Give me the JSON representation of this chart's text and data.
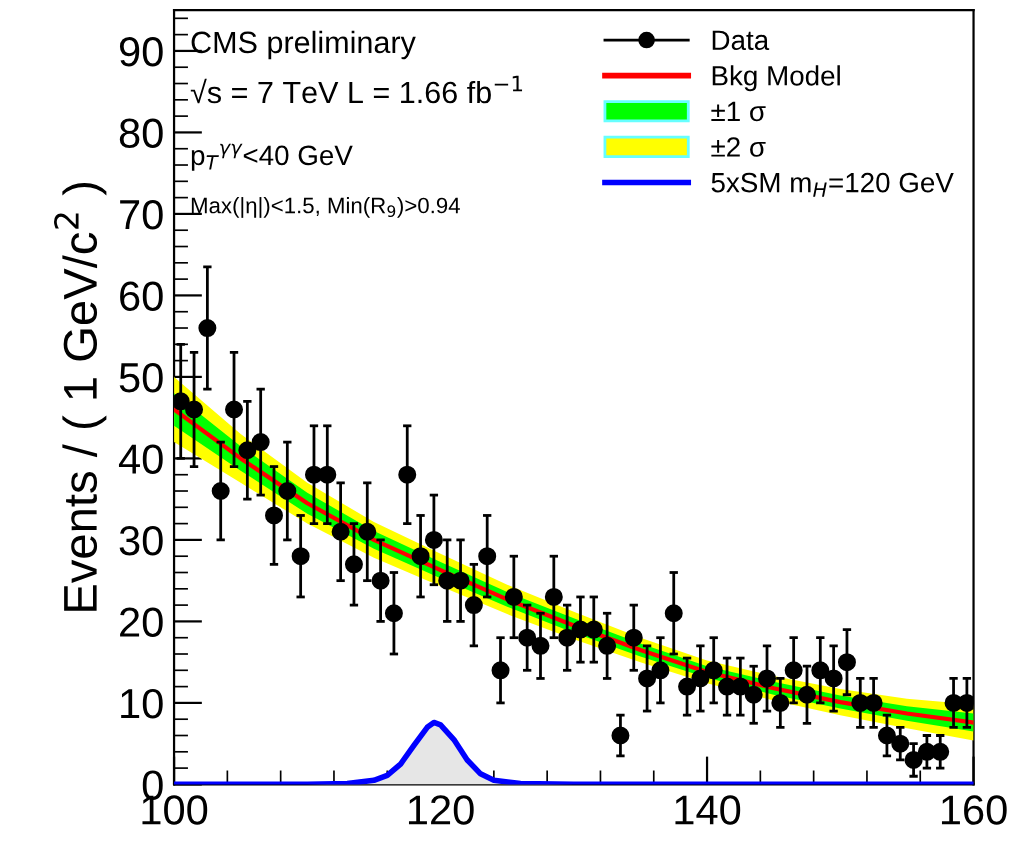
{
  "chart_data": {
    "type": "scatter",
    "ylabel": "Events / ( 1 GeV/c$^{2}$ )",
    "xlim": [
      100,
      160
    ],
    "xticks": [
      100,
      120,
      140,
      160
    ],
    "ylim": [
      0,
      95
    ],
    "yticks": [
      0,
      10,
      20,
      30,
      40,
      50,
      60,
      70,
      80,
      90
    ],
    "grid": false,
    "legend": "top right",
    "annotations": [
      "CMS preliminary",
      "√s = 7 TeV L = 1.66 fb$^{−1}$",
      "p$_{T}$$^{γγ}$<40 GeV",
      "Max(|η|)<1.5, Min(R$_{9}$)>0.94"
    ],
    "series": [
      {
        "name": "Data",
        "color": "#000000",
        "marker": "circle",
        "x": [
          100.5,
          101.5,
          102.5,
          103.5,
          104.5,
          105.5,
          106.5,
          107.5,
          108.5,
          109.5,
          110.5,
          111.5,
          112.5,
          113.5,
          114.5,
          115.5,
          116.5,
          117.5,
          118.5,
          119.5,
          120.5,
          121.5,
          122.5,
          123.5,
          124.5,
          125.5,
          126.5,
          127.5,
          128.5,
          129.5,
          130.5,
          131.5,
          132.5,
          133.5,
          134.5,
          135.5,
          136.5,
          137.5,
          138.5,
          139.5,
          140.5,
          141.5,
          142.5,
          143.5,
          144.5,
          145.5,
          146.5,
          147.5,
          148.5,
          149.5,
          150.5,
          151.5,
          152.5,
          153.5,
          154.5,
          155.5,
          156.5,
          157.5,
          158.5,
          159.5
        ],
        "values": [
          47,
          46,
          56,
          36,
          46,
          41,
          42,
          33,
          36,
          28,
          38,
          38,
          31,
          27,
          31,
          25,
          21,
          38,
          28,
          30,
          25,
          25,
          22,
          28,
          14,
          23,
          18,
          17,
          23,
          18,
          19,
          19,
          17,
          6,
          18,
          13,
          14,
          21,
          12,
          13,
          14,
          12,
          12,
          11,
          13,
          10,
          14,
          11,
          14,
          13,
          15,
          10,
          10,
          6,
          5,
          3,
          4,
          4,
          10,
          10
        ],
        "errors": [
          7,
          7,
          7.5,
          6,
          7,
          6,
          6.5,
          6,
          6,
          5,
          6,
          6,
          6,
          5,
          6,
          5,
          5,
          6,
          5,
          5.5,
          5,
          5,
          5,
          5,
          4,
          5,
          4,
          4,
          5,
          4,
          4,
          4,
          4,
          2.5,
          4,
          4,
          4,
          5,
          3.5,
          4,
          4,
          3.5,
          3.5,
          3.5,
          4,
          3,
          4,
          3.5,
          4,
          4,
          4,
          3,
          3,
          2.5,
          2,
          2,
          2,
          2,
          3,
          3
        ]
      },
      {
        "name": "Bkg Model",
        "type": "line",
        "color": "#ff0000",
        "x": [
          100,
          105,
          110,
          115,
          120,
          125,
          130,
          135,
          140,
          145,
          150,
          155,
          160
        ],
        "values": [
          46,
          40,
          34.5,
          30,
          26.3,
          22.7,
          19.5,
          16.5,
          13.8,
          11.8,
          10.1,
          8.7,
          7.6
        ]
      },
      {
        "name": "±1 σ",
        "type": "line",
        "color": "#00ff00",
        "x": [
          100,
          105,
          110,
          115,
          120,
          125,
          130,
          135,
          140,
          145,
          150,
          155,
          160
        ],
        "values": [
          null,
          null,
          null,
          null,
          null,
          null,
          null,
          null,
          null,
          null,
          null,
          null,
          null
        ],
        "lower": [
          44,
          38.5,
          33.2,
          28.9,
          25.3,
          21.8,
          18.6,
          15.7,
          13.1,
          11,
          9.3,
          7.8,
          6.5
        ],
        "upper": [
          48,
          41.5,
          35.8,
          31.1,
          27.3,
          23.6,
          20.4,
          17.3,
          14.5,
          12.6,
          10.9,
          9.6,
          8.7
        ]
      },
      {
        "name": "±2 σ",
        "type": "line",
        "color": "#ffff00",
        "x": [
          100,
          105,
          110,
          115,
          120,
          125,
          130,
          135,
          140,
          145,
          150,
          155,
          160
        ],
        "values": [
          null,
          null,
          null,
          null,
          null,
          null,
          null,
          null,
          null,
          null,
          null,
          null,
          null
        ],
        "lower": [
          42,
          37,
          32,
          27.8,
          24.3,
          20.9,
          17.8,
          15,
          12.4,
          10.3,
          8.5,
          6.9,
          5.4
        ],
        "upper": [
          50,
          43,
          37,
          32.2,
          28.3,
          24.5,
          21.2,
          18,
          15.2,
          13.3,
          11.7,
          10.5,
          9.8
        ]
      },
      {
        "name": "5xSM m$_{H}$=120 GeV",
        "type": "area",
        "color": "#0000ff",
        "x": [
          100,
          110,
          113,
          115,
          116,
          117,
          118,
          119,
          119.5,
          120,
          121,
          122,
          123,
          124,
          126,
          130,
          160
        ],
        "values": [
          0,
          0,
          0.1,
          0.5,
          1.1,
          2.5,
          4.8,
          7,
          7.6,
          7.3,
          5.5,
          3,
          1.3,
          0.5,
          0.1,
          0,
          0
        ]
      }
    ]
  }
}
